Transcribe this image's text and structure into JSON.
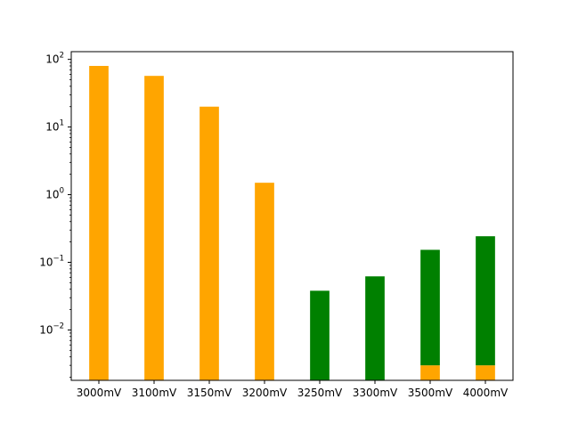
{
  "chart_data": {
    "type": "bar",
    "stacked": true,
    "scale_y": "log",
    "grid": false,
    "categories": [
      "3000mV",
      "3100mV",
      "3150mV",
      "3200mV",
      "3250mV",
      "3300mV",
      "3500mV",
      "4000mV"
    ],
    "series": [
      {
        "color": "#ffa500",
        "values": [
          80,
          57,
          20,
          1.5,
          0,
          0,
          0.003,
          0.003
        ]
      },
      {
        "color": "#008000",
        "values": [
          0,
          0,
          0,
          0,
          0.038,
          0.062,
          0.15,
          0.24
        ]
      }
    ],
    "ylim": [
      0.0018,
      130
    ],
    "yticks": [
      {
        "value": 0.01,
        "base": "10",
        "exp": "−2"
      },
      {
        "value": 0.1,
        "base": "10",
        "exp": "−1"
      },
      {
        "value": 1,
        "base": "10",
        "exp": "0"
      },
      {
        "value": 10,
        "base": "10",
        "exp": "1"
      },
      {
        "value": 100,
        "base": "10",
        "exp": "2"
      }
    ],
    "title": "",
    "xlabel": "",
    "ylabel": ""
  }
}
